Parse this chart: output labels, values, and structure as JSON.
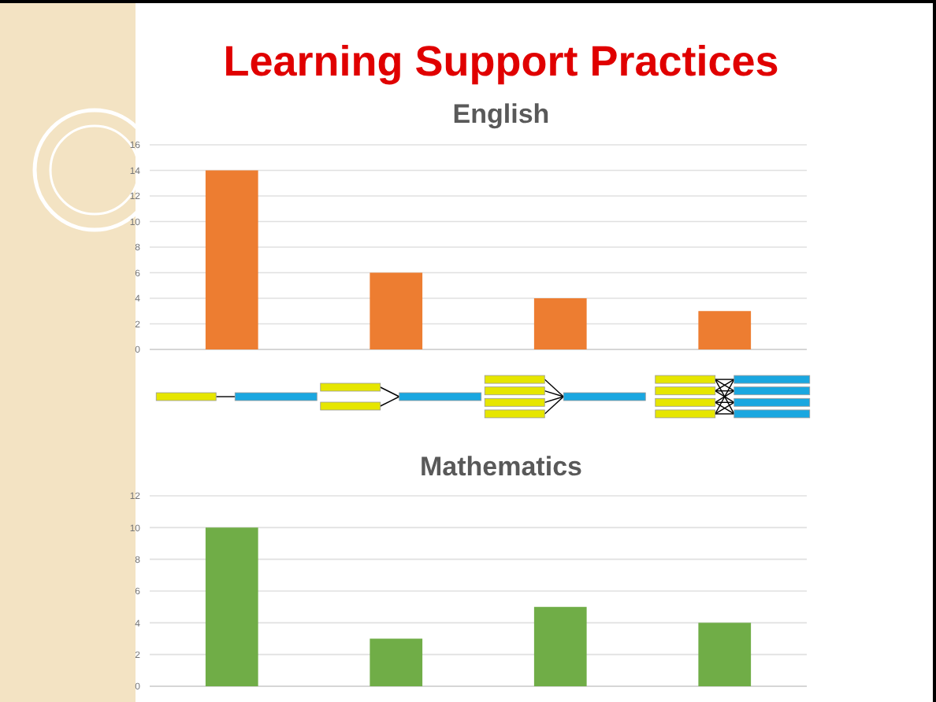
{
  "chart_data": [
    {
      "type": "bar",
      "title": "Learning Support Practices",
      "subtitle": "English",
      "categories": [
        null,
        null,
        null,
        null
      ],
      "values": [
        14,
        6,
        4,
        3
      ],
      "color": "#ed7d31",
      "ylim": [
        0,
        16
      ],
      "yticks": [
        0,
        2,
        4,
        6,
        8,
        10,
        12,
        14,
        16
      ],
      "grid": "y"
    },
    {
      "type": "bar",
      "title": "Mathematics",
      "categories": [
        null,
        null,
        null,
        null
      ],
      "values": [
        10,
        3,
        5,
        4
      ],
      "color": "#70ad47",
      "ylim": [
        0,
        12
      ],
      "yticks": [
        0,
        2,
        4,
        6,
        8,
        10,
        12
      ],
      "grid": "y"
    }
  ]
}
